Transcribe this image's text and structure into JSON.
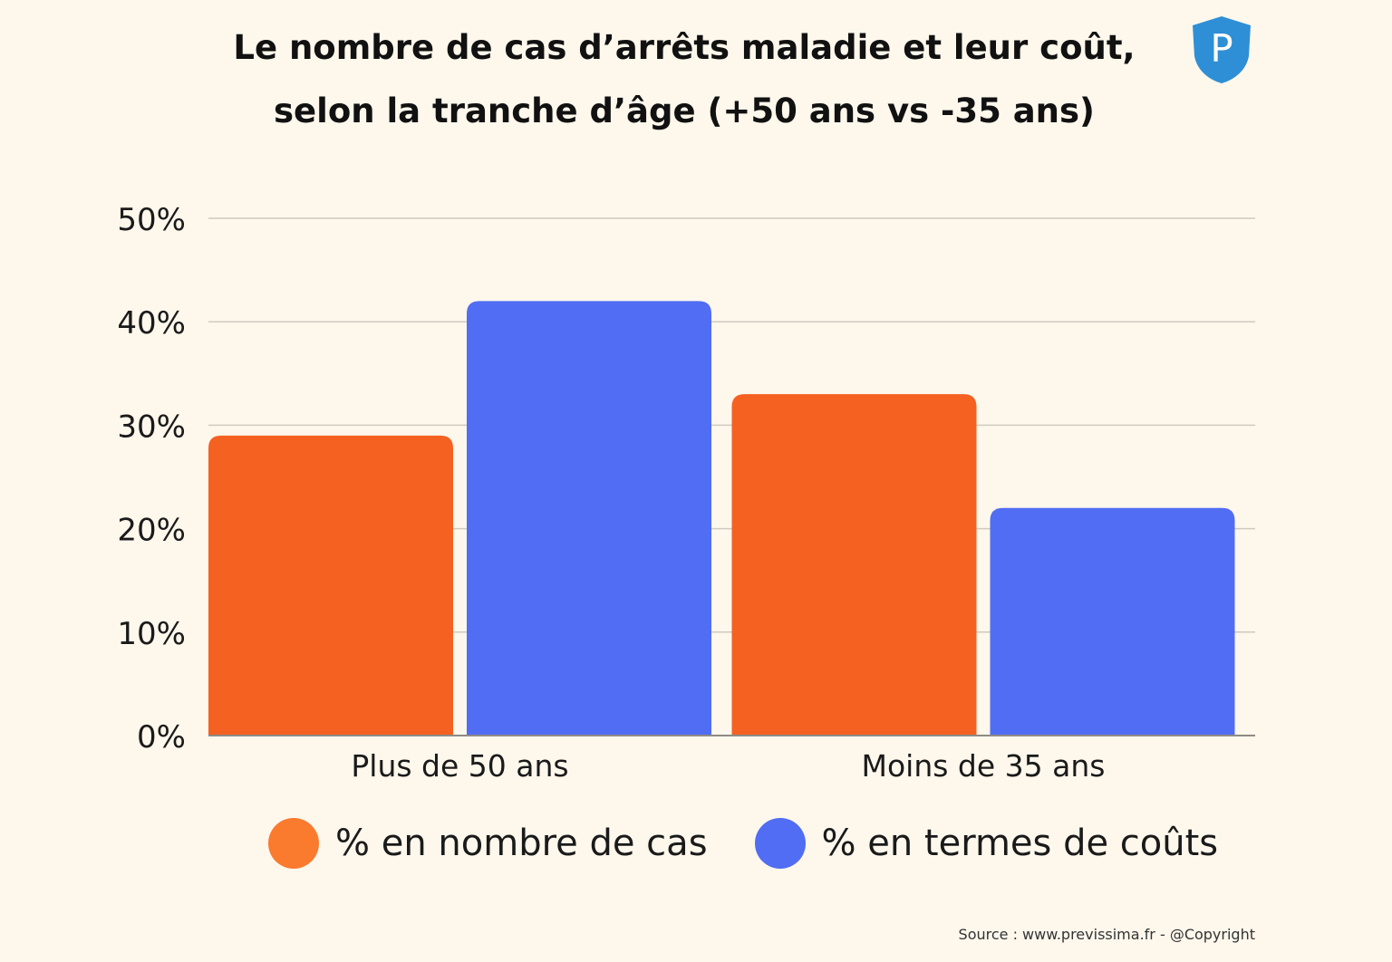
{
  "title_lines": [
    "Le nombre de cas d’arrêts maladie et leur coût,",
    "selon la tranche d’âge (+50 ans vs -35 ans)"
  ],
  "logo": {
    "letter": "P",
    "icon": "shield-p-logo",
    "color": "#2e8fd6"
  },
  "chart_data": {
    "type": "bar",
    "categories": [
      "Plus de 50 ans",
      "Moins de 35 ans"
    ],
    "series": [
      {
        "name": "% en nombre de cas",
        "values": [
          29,
          33
        ],
        "color": "#f56121"
      },
      {
        "name": "% en termes de coûts",
        "values": [
          42,
          22
        ],
        "color": "#516df3"
      }
    ],
    "ylim": [
      0,
      50
    ],
    "yticks": [
      0,
      10,
      20,
      30,
      40,
      50
    ],
    "ytick_labels": [
      "0%",
      "10%",
      "20%",
      "30%",
      "40%",
      "50%"
    ],
    "grid": true,
    "legend_position": "bottom",
    "legend_colors": [
      "#fa7a2e",
      "#516df3"
    ]
  },
  "source": "Source : www.previssima.fr - @Copyright"
}
